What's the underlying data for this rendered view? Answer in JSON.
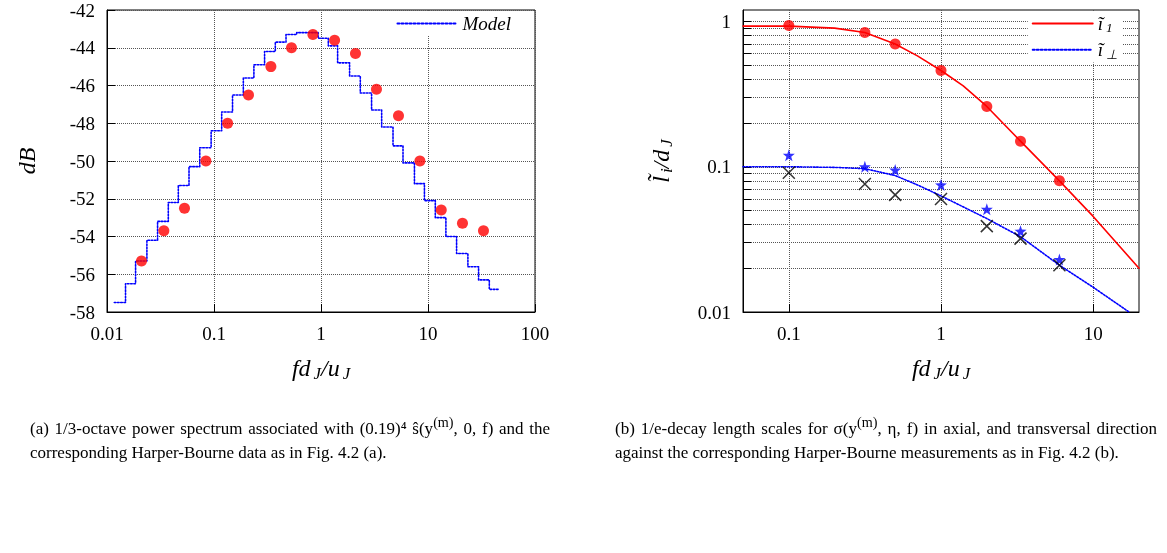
{
  "chart_data": [
    {
      "type": "scatter",
      "xlabel": "fd$_{J}$/u$_{J}$",
      "ylabel": "dB",
      "log": "x",
      "xlim": [
        0.01,
        100
      ],
      "xticks": [
        0.01,
        0.1,
        1,
        10,
        100
      ],
      "ylim": [
        -58,
        -42
      ],
      "yticks": [
        -58,
        -56,
        -54,
        -52,
        -50,
        -48,
        -46,
        -44,
        -42
      ],
      "grid": true,
      "legend": "top right",
      "series": [
        {
          "type": "scatter",
          "color": "#ff0000",
          "marker": "circle",
          "x": [
            0.021,
            0.034,
            0.053,
            0.084,
            0.134,
            0.21,
            0.34,
            0.53,
            0.84,
            1.34,
            2.1,
            3.3,
            5.3,
            8.4,
            13.3,
            21,
            33
          ],
          "values": [
            -55.3,
            -53.7,
            -52.5,
            -50,
            -48,
            -46.5,
            -45,
            -44,
            -43.3,
            -43.6,
            -44.3,
            -46.2,
            -47.6,
            -50,
            -52.6,
            -53.3,
            -53.7
          ]
        },
        {
          "type": "step",
          "name": "Model",
          "color": "#0000ff",
          "marker": "none",
          "line_style": "dotted",
          "x": [
            0.0117,
            0.0149,
            0.0185,
            0.0236,
            0.0297,
            0.0374,
            0.0464,
            0.0584,
            0.0736,
            0.094,
            0.118,
            0.149,
            0.188,
            0.236,
            0.297,
            0.374,
            0.471,
            0.593,
            0.746,
            0.94,
            1.17,
            1.43,
            1.85,
            2.33,
            2.97,
            3.69,
            4.71,
            5.84,
            7.47,
            9.26,
            11.7,
            14.7,
            18.5,
            23.6,
            29.7,
            37.4,
            46.4
          ],
          "values": [
            -57.5,
            -56.5,
            -55.3,
            -54.2,
            -53.2,
            -52.2,
            -51.3,
            -50.3,
            -49.3,
            -48.4,
            -47.4,
            -46.5,
            -45.6,
            -44.9,
            -44.2,
            -43.7,
            -43.3,
            -43.2,
            -43.2,
            -43.5,
            -43.9,
            -44.8,
            -45.5,
            -46.4,
            -47.3,
            -48.2,
            -49.2,
            -50.1,
            -51.2,
            -52.1,
            -53,
            -54,
            -54.9,
            -55.6,
            -56.3,
            -56.8,
            -56.8
          ]
        }
      ],
      "annotations": [
        "(a) 1/3-octave power spectrum associated with (0.19)⁴ ŝ(y$^{(m)}$, 0, f) and the corresponding Harper-Bourne data as in Fig. 4.2 (a)."
      ]
    },
    {
      "type": "scatter",
      "xlabel": "fd$_{J}$/u$_{J}$",
      "ylabel": "l̃$_{i}$/d$_{J}$",
      "log": "xy",
      "xlim": [
        0.05,
        20
      ],
      "xticks": [
        0.1,
        1,
        10
      ],
      "ylim": [
        0.01,
        1.2
      ],
      "yticks": [
        0.01,
        {
          "value": 0.02,
          "label": null
        },
        {
          "value": 0.03,
          "label": null
        },
        {
          "value": 0.04,
          "label": null
        },
        {
          "value": 0.05,
          "label": null
        },
        {
          "value": 0.06,
          "label": null
        },
        {
          "value": 0.07,
          "label": null
        },
        {
          "value": 0.08,
          "label": null
        },
        {
          "value": 0.09,
          "label": null
        },
        0.1,
        {
          "value": 0.2,
          "label": null
        },
        {
          "value": 0.3,
          "label": null
        },
        {
          "value": 0.4,
          "label": null
        },
        {
          "value": 0.5,
          "label": null
        },
        {
          "value": 0.6,
          "label": null
        },
        {
          "value": 0.7,
          "label": null
        },
        {
          "value": 0.8,
          "label": null
        },
        {
          "value": 0.9,
          "label": null
        },
        1
      ],
      "grid": true,
      "legend": "top right",
      "series": [
        {
          "type": "line",
          "name": "ĩ$_{1}$",
          "color": "#ff0000",
          "marker": "none",
          "line_style": "solid",
          "x": [
            0.05,
            0.1,
            0.2,
            0.316,
            0.5,
            0.7,
            1,
            1.4,
            2,
            3.33,
            6,
            10,
            20
          ],
          "values": [
            0.93,
            0.93,
            0.9,
            0.84,
            0.7,
            0.58,
            0.46,
            0.36,
            0.26,
            0.15,
            0.08,
            0.0455,
            0.02
          ]
        },
        {
          "type": "line",
          "name": "ĩ$_{⊥}$",
          "color": "#0000ff",
          "marker": "none",
          "line_style": "dotted",
          "x": [
            0.05,
            0.1,
            0.2,
            0.316,
            0.5,
            0.7,
            1,
            2,
            3.33,
            6,
            10,
            17.2
          ],
          "values": [
            0.1,
            0.1,
            0.099,
            0.097,
            0.087,
            0.075,
            0.063,
            0.044,
            0.033,
            0.021,
            0.0148,
            0.01
          ]
        },
        {
          "type": "scatter",
          "color": "#ff0000",
          "marker": "circle",
          "x": [
            0.1,
            0.316,
            0.5,
            1,
            2,
            3.33,
            6
          ],
          "values": [
            0.94,
            0.84,
            0.7,
            0.46,
            0.26,
            0.15,
            0.08
          ]
        },
        {
          "type": "scatter",
          "color": "#0000ff",
          "marker": "star",
          "x": [
            0.1,
            0.316,
            0.5,
            1,
            2,
            3.33,
            6
          ],
          "values": [
            0.12,
            0.1,
            0.095,
            0.075,
            0.051,
            0.036,
            0.023
          ]
        },
        {
          "type": "scatter",
          "color": "#000000",
          "marker": "cross",
          "x": [
            0.1,
            0.316,
            0.5,
            1,
            2,
            3.33,
            6
          ],
          "values": [
            0.091,
            0.076,
            0.064,
            0.06,
            0.039,
            0.032,
            0.021
          ]
        }
      ],
      "annotations": [
        "(b) 1/e-decay length scales for σ(y$^{(m)}$, η, f) in axial, and transversal direction against the corresponding Harper-Bourne measurements as in Fig. 4.2 (b)."
      ]
    }
  ]
}
